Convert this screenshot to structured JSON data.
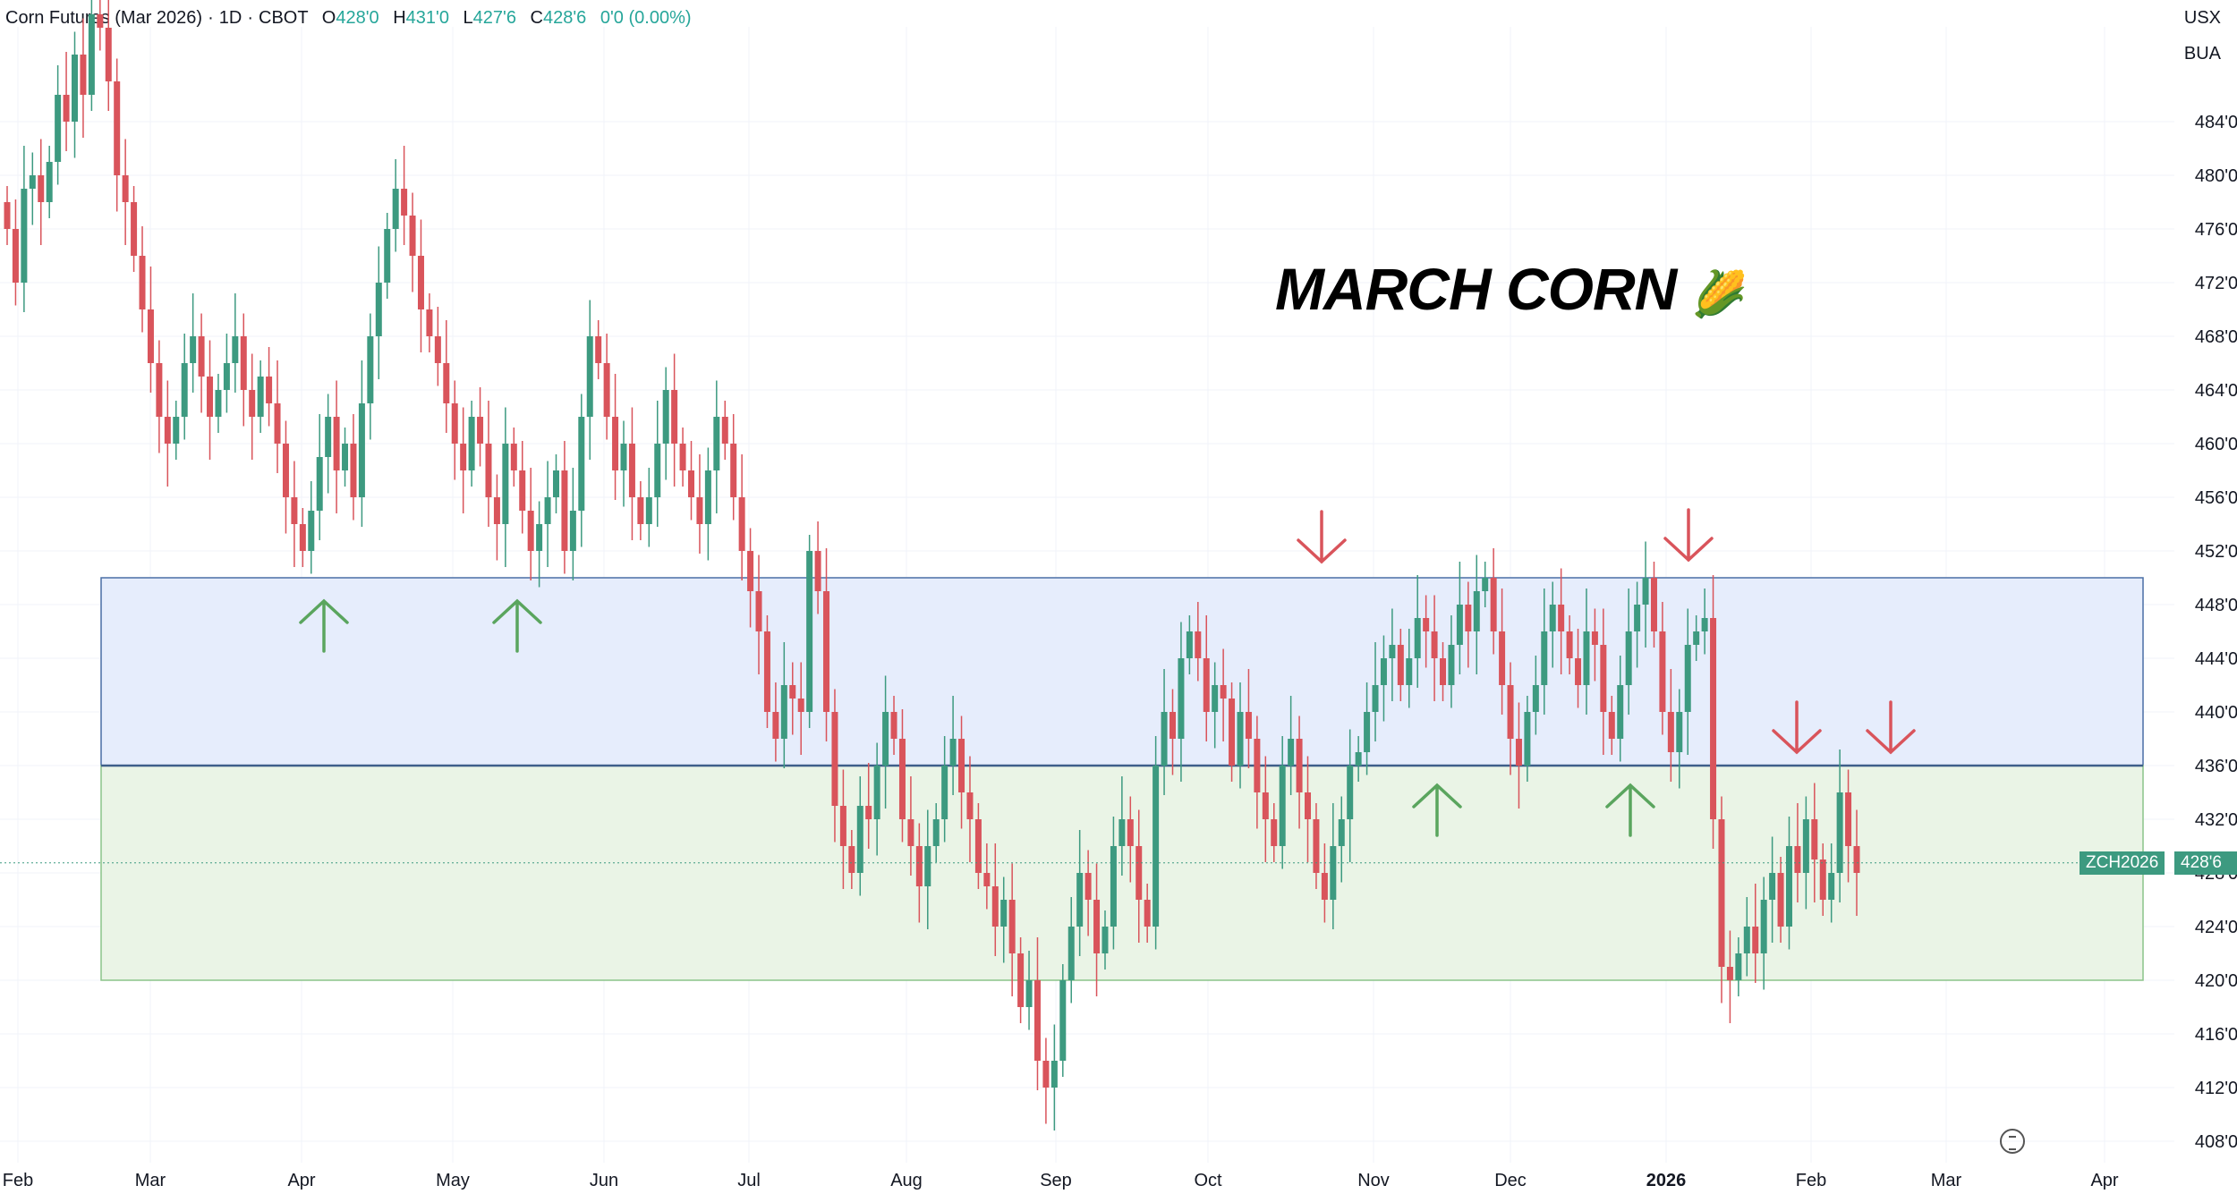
{
  "header": {
    "symbol": "Corn Futures (Mar 2026)",
    "interval": "1D",
    "exchange": "CBOT",
    "open_label": "O",
    "open": "428'0",
    "high_label": "H",
    "high": "431'0",
    "low_label": "L",
    "low": "427'6",
    "close_label": "C",
    "close": "428'6",
    "change": "0'0 (0.00%)"
  },
  "units": {
    "currency": "USX",
    "unit": "BUA"
  },
  "price_tag": {
    "symbol": "ZCH2026",
    "value": "428'6"
  },
  "colors": {
    "up": "#3d9a80",
    "down": "#d9545b",
    "zone_upper": "#e6edfc",
    "zone_lower": "#eaf4e6"
  },
  "chart_data": {
    "type": "candlestick",
    "title": "MARCH CORN",
    "title_emoji": "🌽",
    "y_axis": {
      "ticks": [
        "408'0",
        "412'0",
        "416'0",
        "420'0",
        "424'0",
        "428'0",
        "432'0",
        "436'0",
        "440'0",
        "444'0",
        "448'0",
        "452'0",
        "456'0",
        "460'0",
        "464'0",
        "468'0",
        "472'0",
        "476'0",
        "480'0",
        "484'0"
      ],
      "range": [
        406,
        493
      ]
    },
    "x_axis": {
      "labels": [
        "Feb",
        "Mar",
        "Apr",
        "May",
        "Jun",
        "Jul",
        "Aug",
        "Sep",
        "Oct",
        "Nov",
        "Dec",
        "2026",
        "Feb",
        "Mar",
        "Apr"
      ]
    },
    "zones": [
      {
        "name": "upper-resistance-zone",
        "low": 436,
        "high": 450
      },
      {
        "name": "lower-support-zone",
        "low": 420,
        "high": 436
      }
    ],
    "last_price": 428.75,
    "candles_approx_closes": [
      476,
      472,
      479,
      480,
      478,
      481,
      486,
      484,
      489,
      486,
      492,
      491,
      487,
      480,
      478,
      474,
      470,
      466,
      462,
      460,
      462,
      466,
      468,
      465,
      462,
      464,
      466,
      468,
      464,
      462,
      465,
      463,
      460,
      456,
      454,
      452,
      455,
      459,
      462,
      458,
      460,
      456,
      463,
      468,
      472,
      476,
      479,
      477,
      474,
      470,
      468,
      466,
      463,
      460,
      458,
      462,
      460,
      456,
      454,
      460,
      458,
      455,
      452,
      454,
      456,
      458,
      452,
      455,
      462,
      468,
      466,
      462,
      458,
      460,
      456,
      454,
      456,
      460,
      464,
      460,
      458,
      456,
      454,
      458,
      462,
      460,
      456,
      452,
      449,
      446,
      440,
      438,
      442,
      441,
      440,
      452,
      449,
      440,
      433,
      430,
      428,
      433,
      432,
      436,
      440,
      438,
      432,
      430,
      427,
      430,
      432,
      436,
      438,
      434,
      432,
      428,
      427,
      424,
      426,
      422,
      418,
      420,
      414,
      412,
      414,
      420,
      424,
      428,
      426,
      422,
      424,
      430,
      432,
      430,
      426,
      424,
      436,
      440,
      438,
      444,
      446,
      444,
      440,
      442,
      441,
      436,
      440,
      438,
      434,
      432,
      430,
      436,
      438,
      434,
      432,
      428,
      426,
      430,
      432,
      436,
      437,
      440,
      442,
      444,
      445,
      442,
      444,
      447,
      446,
      444,
      442,
      445,
      448,
      446,
      449,
      450,
      446,
      442,
      438,
      436,
      440,
      442,
      446,
      448,
      446,
      444,
      442,
      446,
      445,
      440,
      438,
      442,
      446,
      448,
      450,
      446,
      440,
      437,
      440,
      445,
      446,
      447,
      432,
      421,
      420,
      422,
      424,
      422,
      426,
      428,
      424,
      430,
      428,
      432,
      429,
      426,
      428,
      434,
      430,
      428
    ]
  },
  "annotations": {
    "up_arrows": [
      {
        "x_label": "Apr",
        "price": 447
      },
      {
        "x_label": "May",
        "price": 447
      },
      {
        "x_label": "Nov",
        "price": 431
      },
      {
        "x_label": "Dec",
        "price": 431
      }
    ],
    "down_arrows": [
      {
        "x_label": "Oct",
        "price": 453
      },
      {
        "x_label": "2026",
        "price": 453
      },
      {
        "x_label": "Feb",
        "price": 437
      },
      {
        "x_label": "Feb",
        "price": 437
      }
    ]
  }
}
